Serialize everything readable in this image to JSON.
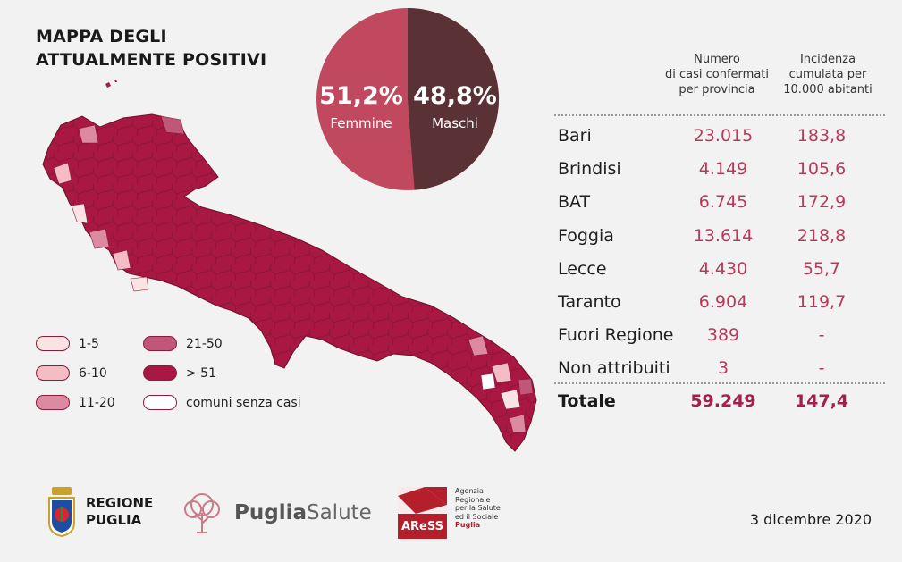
{
  "title": {
    "line1": "MAPPA DEGLI",
    "line2": "ATTUALMENTE POSITIVI"
  },
  "gender": {
    "female": {
      "pct": "51,2%",
      "label": "Femmine",
      "color": "#c0495f",
      "value": 51.2
    },
    "male": {
      "pct": "48,8%",
      "label": "Maschi",
      "color": "#5a3235",
      "value": 48.8
    }
  },
  "legend": [
    {
      "label": "1-5",
      "color": "#fbe3e3"
    },
    {
      "label": "6-10",
      "color": "#f4bcc4"
    },
    {
      "label": "11-20",
      "color": "#dc8aa1"
    },
    {
      "label": "21-50",
      "color": "#c05678"
    },
    {
      "label": "> 51",
      "color": "#a81842"
    },
    {
      "label": "comuni senza casi",
      "color": "#ffffff"
    }
  ],
  "table": {
    "header_cases": "Numero di casi confermati per provincia",
    "header_cases_lines": [
      "Numero",
      "di casi confermati",
      "per provincia"
    ],
    "header_inc_lines": [
      "Incidenza",
      "cumulata per",
      "10.000 abitanti"
    ],
    "rows": [
      {
        "name": "Bari",
        "cases": "23.015",
        "inc": "183,8"
      },
      {
        "name": "Brindisi",
        "cases": "4.149",
        "inc": "105,6"
      },
      {
        "name": "BAT",
        "cases": "6.745",
        "inc": "172,9"
      },
      {
        "name": "Foggia",
        "cases": "13.614",
        "inc": "218,8"
      },
      {
        "name": "Lecce",
        "cases": "4.430",
        "inc": "55,7"
      },
      {
        "name": "Taranto",
        "cases": "6.904",
        "inc": "119,7"
      },
      {
        "name": "Fuori Regione",
        "cases": "389",
        "inc": "-"
      },
      {
        "name": "Non attribuiti",
        "cases": "3",
        "inc": "-"
      }
    ],
    "total": {
      "name": "Totale",
      "cases": "59.249",
      "inc": "147,4"
    }
  },
  "logos": {
    "regione": [
      "REGIONE",
      "PUGLIA"
    ],
    "puglia_salute": {
      "bold": "Puglia",
      "light": "Salute"
    },
    "ares": {
      "mark": "AReSS",
      "lines": [
        "Agenzia",
        "Regionale",
        "per la Salute",
        "ed il Sociale"
      ],
      "region": "Puglia"
    }
  },
  "date": "3 dicembre 2020"
}
